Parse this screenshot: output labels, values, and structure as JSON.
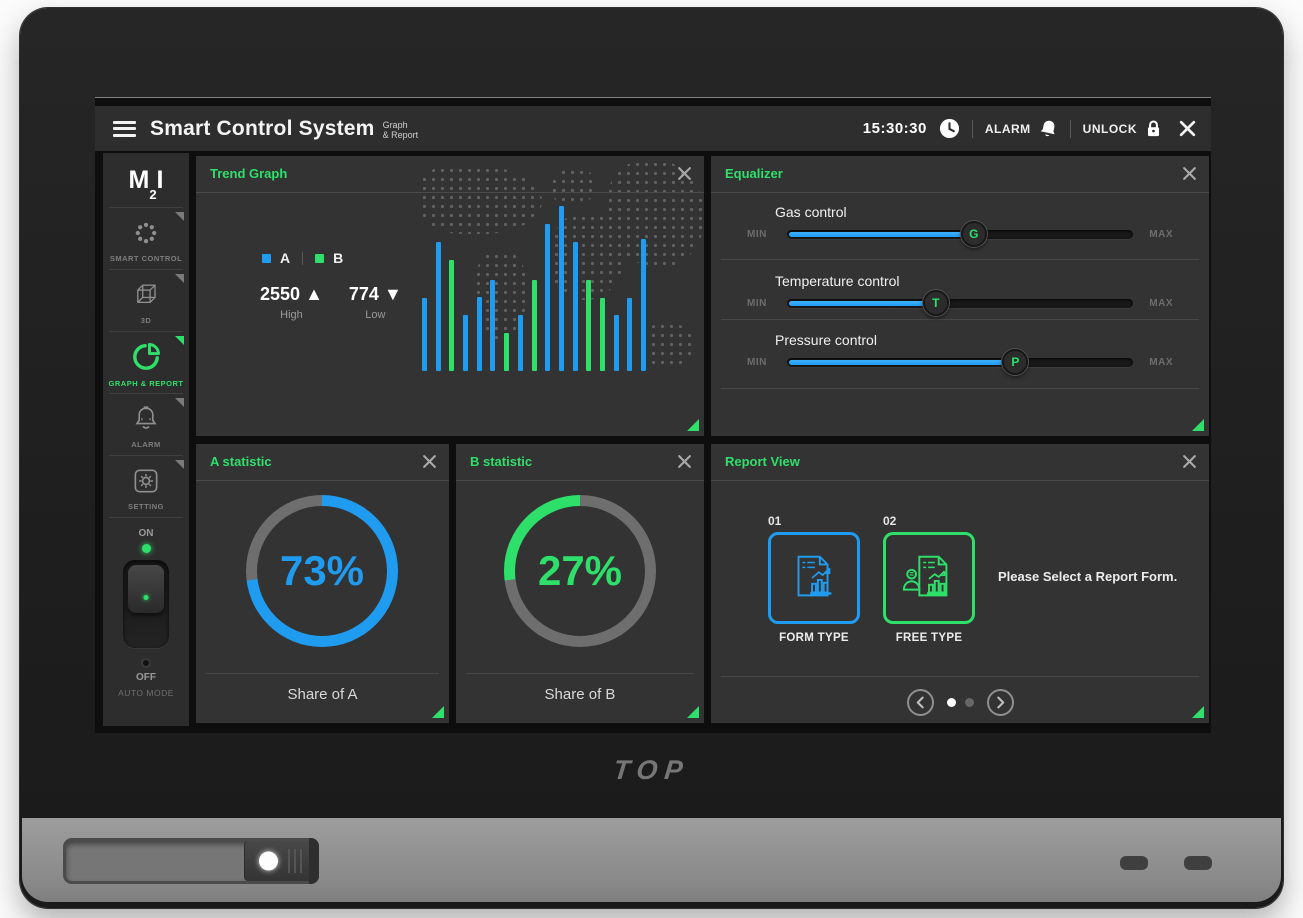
{
  "colors": {
    "accent_green": "#2ee06a",
    "accent_blue": "#1f9bf0",
    "donut_track": "#6e6e6e"
  },
  "device": {
    "brand": "TOP"
  },
  "top_bar": {
    "title": "Smart Control System",
    "subtitle_line1": "Graph",
    "subtitle_line2": "& Report",
    "time": "15:30:30",
    "alarm_label": "ALARM",
    "unlock_label": "UNLOCK"
  },
  "sidebar": {
    "logo_parts": [
      "M",
      "2",
      "I"
    ],
    "items": [
      {
        "label": "SMART CONTROL",
        "icon": "dots-circle",
        "active": false
      },
      {
        "label": "3D",
        "icon": "cube",
        "active": false
      },
      {
        "label": "GRAPH & REPORT",
        "icon": "pie-chart",
        "active": true
      },
      {
        "label": "ALARM",
        "icon": "bell",
        "active": false
      },
      {
        "label": "SETTING",
        "icon": "gear",
        "active": false
      }
    ],
    "power": {
      "on_label": "ON",
      "off_label": "OFF",
      "mode_label": "AUTO MODE",
      "state": "ON"
    }
  },
  "panels": {
    "trend_graph": {
      "title": "Trend Graph",
      "legend": [
        {
          "name": "A"
        },
        {
          "name": "B"
        }
      ],
      "high_value": "2550",
      "high_arrow": "▲",
      "high_label": "High",
      "low_value": "774",
      "low_arrow": "▼",
      "low_label": "Low"
    },
    "equalizer": {
      "title": "Equalizer",
      "sliders": [
        {
          "label": "Gas control",
          "knob": "G",
          "min": "MIN",
          "max": "MAX",
          "percent": 54
        },
        {
          "label": "Temperature control",
          "knob": "T",
          "min": "MIN",
          "max": "MAX",
          "percent": 43
        },
        {
          "label": "Pressure control",
          "knob": "P",
          "min": "MIN",
          "max": "MAX",
          "percent": 66
        }
      ]
    },
    "a_statistic": {
      "title": "A statistic",
      "caption": "Share of A"
    },
    "b_statistic": {
      "title": "B statistic",
      "caption": "Share of B"
    },
    "report_view": {
      "title": "Report View",
      "cards": [
        {
          "index": "01",
          "label": "FORM TYPE",
          "icon": "document-chart"
        },
        {
          "index": "02",
          "label": "FREE TYPE",
          "icon": "person-document-chart"
        }
      ],
      "hint": "Please Select a Report Form.",
      "pagination": {
        "pages": 2,
        "current": 1
      }
    }
  },
  "chart_data": [
    {
      "type": "bar",
      "title": "Trend Graph",
      "legend": [
        "A",
        "B"
      ],
      "colors": {
        "A": "#1f9bf0",
        "B": "#2ee06a"
      },
      "high": 2550,
      "low": 774,
      "ylim": [
        0,
        100
      ],
      "grid": false,
      "axes": "hidden",
      "bars": [
        {
          "series": "A",
          "height_pct": 44
        },
        {
          "series": "A",
          "height_pct": 78
        },
        {
          "series": "B",
          "height_pct": 67
        },
        {
          "series": "A",
          "height_pct": 34
        },
        {
          "series": "A",
          "height_pct": 45
        },
        {
          "series": "A",
          "height_pct": 55
        },
        {
          "series": "B",
          "height_pct": 23
        },
        {
          "series": "A",
          "height_pct": 34
        },
        {
          "series": "B",
          "height_pct": 55
        },
        {
          "series": "A",
          "height_pct": 89
        },
        {
          "series": "A",
          "height_pct": 100
        },
        {
          "series": "A",
          "height_pct": 78
        },
        {
          "series": "B",
          "height_pct": 55
        },
        {
          "series": "B",
          "height_pct": 44
        },
        {
          "series": "A",
          "height_pct": 34
        },
        {
          "series": "A",
          "height_pct": 44
        },
        {
          "series": "A",
          "height_pct": 80
        }
      ]
    },
    {
      "type": "donut",
      "name": "A statistic",
      "percent": 73,
      "label": "73%",
      "color": "#1f9bf0",
      "track_color": "#6e6e6e",
      "direction": "cw"
    },
    {
      "type": "donut",
      "name": "B statistic",
      "percent": 27,
      "label": "27%",
      "color": "#2ee06a",
      "track_color": "#6e6e6e",
      "direction": "ccw"
    }
  ]
}
